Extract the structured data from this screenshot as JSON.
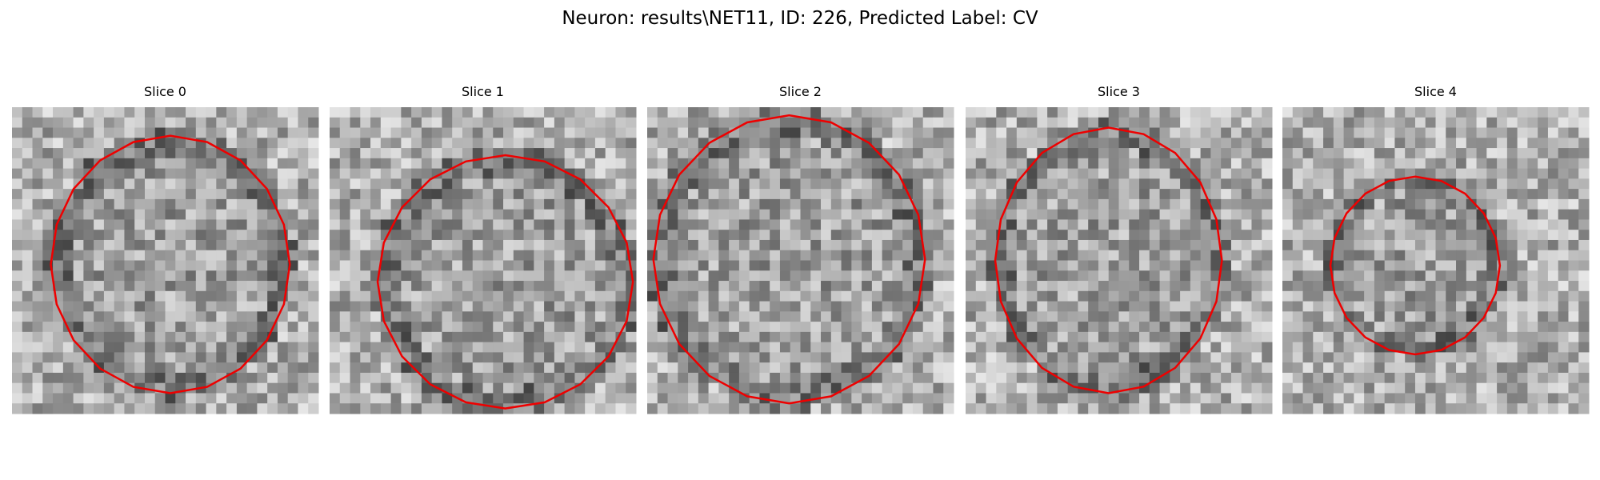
{
  "title": "Neuron: results\\NET11, ID: 226, Predicted Label: CV",
  "panels": [
    {
      "title": "Slice 0"
    },
    {
      "title": "Slice 1"
    },
    {
      "title": "Slice 2"
    },
    {
      "title": "Slice 3"
    },
    {
      "title": "Slice 4"
    }
  ]
}
